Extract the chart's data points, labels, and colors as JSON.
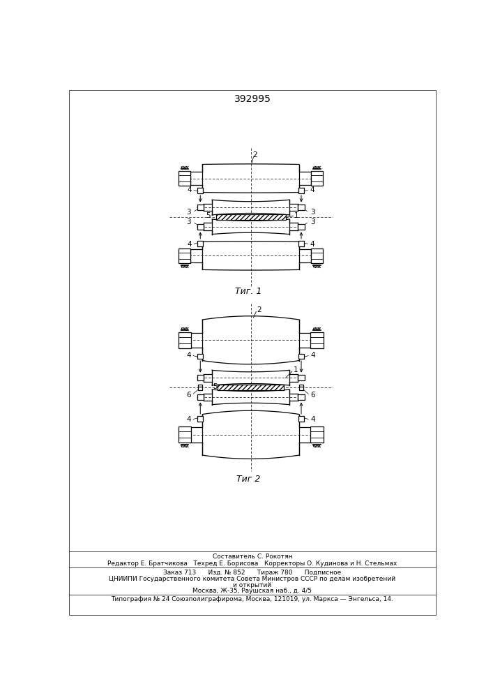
{
  "title": "392995",
  "fig1_caption": "Τиг. 1",
  "fig2_caption": "Τиг 2",
  "footer": [
    "Составитель С. Рокотян",
    "Редактор Е. Братчикова   Техред Е. Борисова   Корректоры О. Кудинова и Н. Стельмах",
    "Заказ 713      Изд. № 852      Тираж 780      Подписное",
    "ЦНИИПИ Государственного комитета Совета Министров СССР по делам изобретений",
    "и открытий",
    "Москва, Ж-35, Раушская наб., д. 4/5",
    "Типография № 24 Союзполиграфирома, Москва, 121019, ул. Маркса — Энгельса, 14."
  ],
  "bg_color": "#ffffff",
  "lc": "#000000"
}
